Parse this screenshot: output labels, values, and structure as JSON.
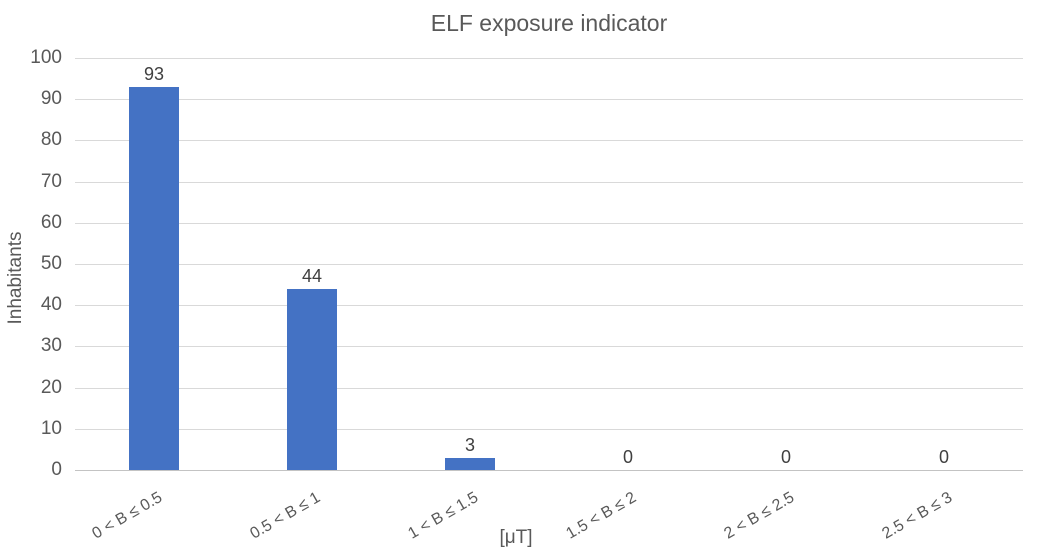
{
  "chart_data": {
    "type": "bar",
    "title": "ELF exposure indicator",
    "categories": [
      "0 < B ≤ 0.5",
      "0.5 < B ≤ 1",
      "1 < B ≤ 1.5",
      "1.5 < B ≤ 2",
      "2 < B ≤ 2.5",
      "2.5 < B ≤ 3"
    ],
    "values": [
      93,
      44,
      3,
      0,
      0,
      0
    ],
    "data_labels": [
      "93",
      "44",
      "3",
      "0",
      "0",
      "0"
    ],
    "xlabel": "[μT]",
    "ylabel": "Inhabitants",
    "ylim": [
      0,
      100
    ],
    "ytick_interval": 10,
    "yticks": [
      0,
      10,
      20,
      30,
      40,
      50,
      60,
      70,
      80,
      90,
      100
    ],
    "grid": true,
    "legend": "none",
    "colors": {
      "bar": "#4472C4",
      "axis_text": "#595959",
      "data_label": "#404040",
      "gridline": "#D9D9D9",
      "axis_line": "#C3C3C3",
      "background": "#FFFFFF"
    }
  }
}
